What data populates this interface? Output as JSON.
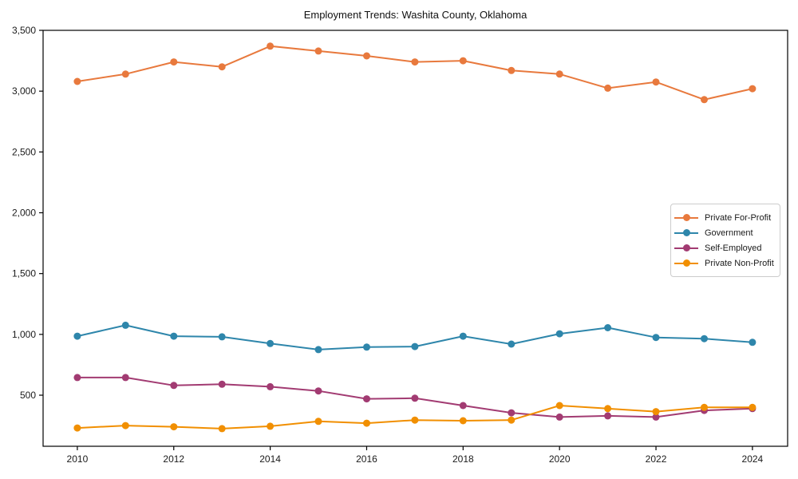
{
  "chart_data": {
    "type": "line",
    "title": "Employment Trends: Washita County, Oklahoma",
    "xlabel": "",
    "ylabel": "",
    "x": [
      2010,
      2011,
      2012,
      2013,
      2014,
      2015,
      2016,
      2017,
      2018,
      2019,
      2020,
      2021,
      2022,
      2023,
      2024
    ],
    "series": [
      {
        "name": "Private For-Profit",
        "color": "#E8793D",
        "values": [
          3080,
          3140,
          3240,
          3200,
          3370,
          3330,
          3290,
          3240,
          3250,
          3170,
          3140,
          3025,
          3075,
          2930,
          3020
        ]
      },
      {
        "name": "Government",
        "color": "#2E86AB",
        "values": [
          985,
          1075,
          985,
          980,
          925,
          875,
          895,
          900,
          985,
          920,
          1005,
          1055,
          975,
          965,
          935
        ]
      },
      {
        "name": "Self-Employed",
        "color": "#A23B72",
        "values": [
          645,
          645,
          580,
          590,
          570,
          535,
          470,
          475,
          415,
          355,
          320,
          330,
          320,
          375,
          390
        ]
      },
      {
        "name": "Private Non-Profit",
        "color": "#F18F01",
        "values": [
          230,
          250,
          240,
          225,
          245,
          285,
          270,
          295,
          290,
          295,
          415,
          390,
          365,
          400,
          400
        ]
      }
    ],
    "xticks": [
      2010,
      2012,
      2014,
      2016,
      2018,
      2020,
      2022,
      2024
    ],
    "yticks": [
      500,
      1000,
      1500,
      2000,
      2500,
      3000,
      3500
    ],
    "ytick_labels": [
      "500",
      "1,000",
      "1,500",
      "2,000",
      "2,500",
      "3,000",
      "3,500"
    ],
    "xlim": [
      2009.29,
      2024.73
    ],
    "ylim": [
      80,
      3500
    ],
    "grid": false,
    "legend_position": "center right",
    "axis_color": "#000000",
    "text_color": "#1a1a1a"
  }
}
